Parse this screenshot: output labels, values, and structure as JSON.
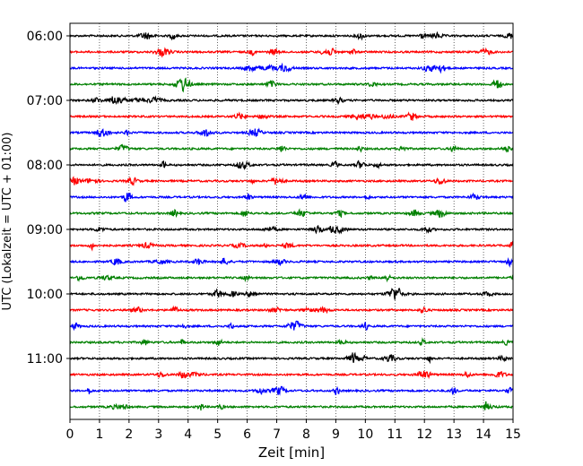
{
  "chart_data": {
    "type": "line",
    "title": "",
    "xlabel": "Zeit  [min]",
    "ylabel": "UTC (Lokalzeit = UTC + 01:00)",
    "xlim": [
      0,
      15
    ],
    "x_ticks": [
      0,
      1,
      2,
      3,
      4,
      5,
      6,
      7,
      8,
      9,
      10,
      11,
      12,
      13,
      14,
      15
    ],
    "x_tick_labels": [
      "0",
      "1",
      "2",
      "3",
      "4",
      "5",
      "6",
      "7",
      "8",
      "9",
      "10",
      "11",
      "12",
      "13",
      "14",
      "15"
    ],
    "y_tick_labels": [
      "06:00",
      "07:00",
      "08:00",
      "09:00",
      "10:00",
      "11:00"
    ],
    "grid": "vertical dotted lines at each minute",
    "trace_interval_minutes": 15,
    "trace_start": "06:00",
    "trace_count": 24,
    "trace_color_cycle": [
      "#000000",
      "#ff0000",
      "#0000ff",
      "#008000"
    ],
    "traces": [
      {
        "start": "06:00"
      },
      {
        "start": "06:15"
      },
      {
        "start": "06:30"
      },
      {
        "start": "06:45"
      },
      {
        "start": "07:00"
      },
      {
        "start": "07:15"
      },
      {
        "start": "07:30"
      },
      {
        "start": "07:45"
      },
      {
        "start": "08:00"
      },
      {
        "start": "08:15"
      },
      {
        "start": "08:30"
      },
      {
        "start": "08:45"
      },
      {
        "start": "09:00"
      },
      {
        "start": "09:15"
      },
      {
        "start": "09:30"
      },
      {
        "start": "09:45"
      },
      {
        "start": "10:00"
      },
      {
        "start": "10:15"
      },
      {
        "start": "10:30"
      },
      {
        "start": "10:45"
      },
      {
        "start": "11:00"
      },
      {
        "start": "11:15"
      },
      {
        "start": "11:30"
      },
      {
        "start": "11:45"
      }
    ]
  }
}
